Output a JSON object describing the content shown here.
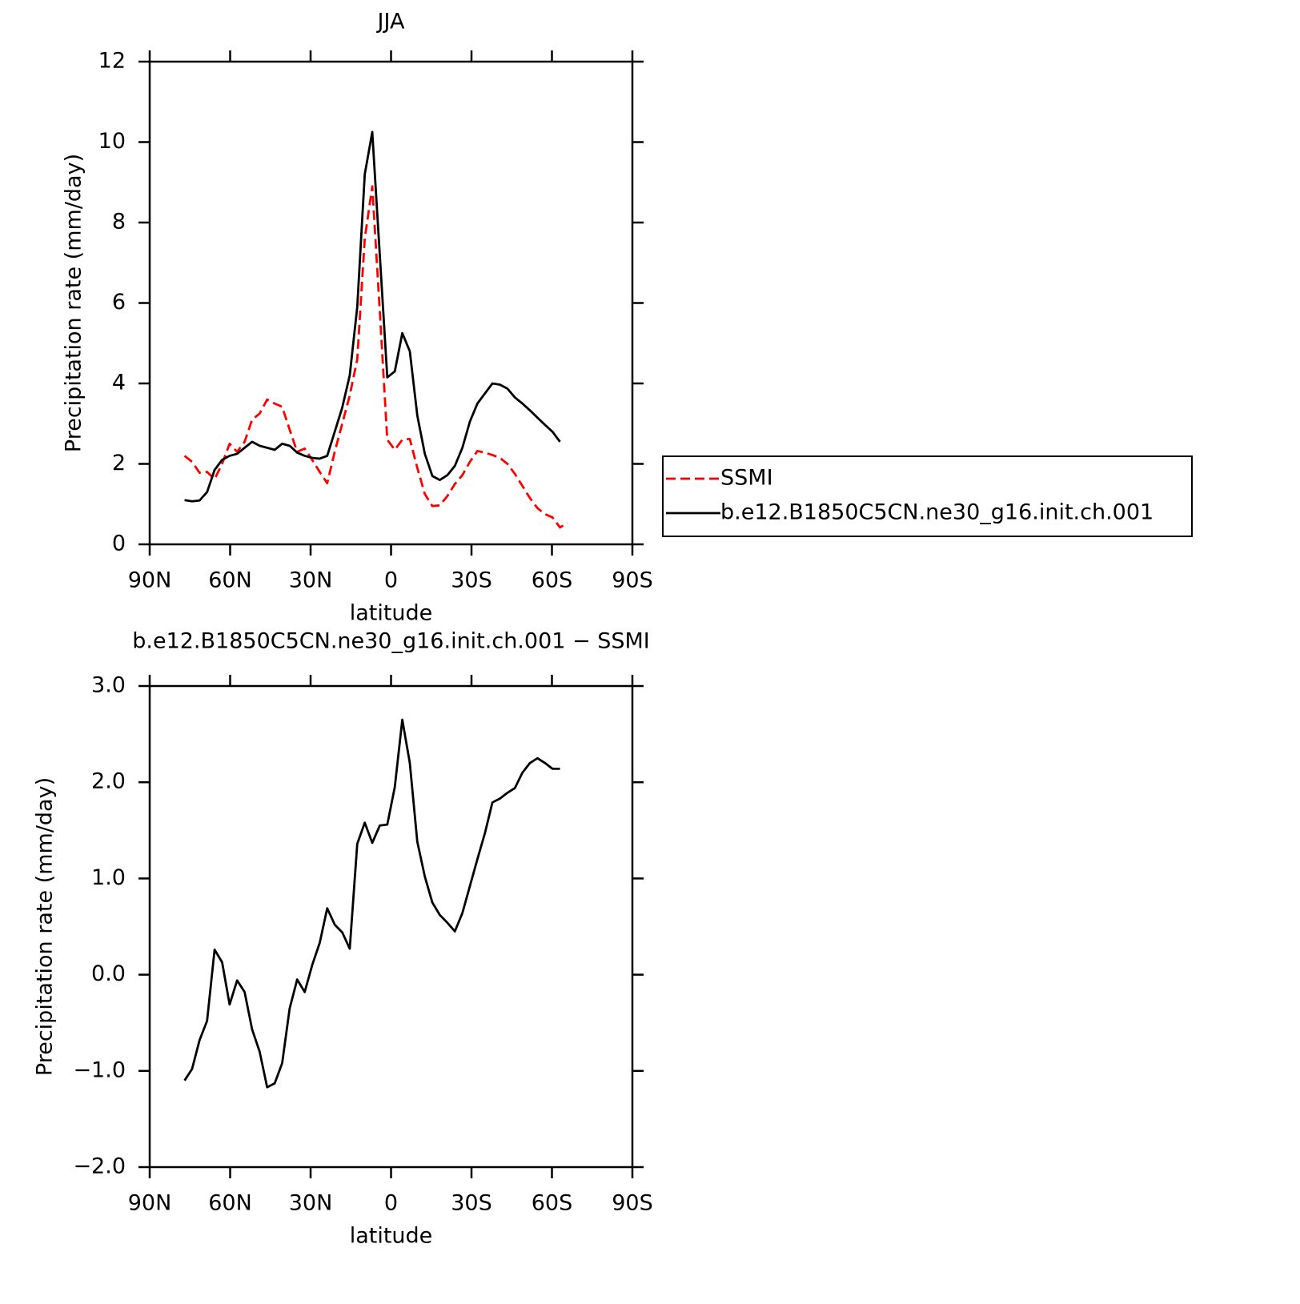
{
  "chart_data": [
    {
      "type": "line",
      "title": "JJA",
      "x_label": "latitude",
      "y_label": "Precipitation rate (mm/day)",
      "x": [
        77.0,
        74.2,
        71.4,
        68.6,
        65.8,
        63.0,
        60.2,
        57.4,
        54.6,
        51.8,
        49.0,
        46.2,
        43.4,
        40.6,
        37.8,
        35.0,
        32.2,
        29.4,
        26.6,
        23.8,
        21.0,
        18.2,
        15.4,
        12.6,
        9.8,
        7.0,
        4.2,
        1.4,
        -1.4,
        -4.2,
        -7.0,
        -9.8,
        -12.6,
        -15.4,
        -18.2,
        -21.0,
        -23.8,
        -26.6,
        -29.4,
        -32.2,
        -35.0,
        -37.8,
        -40.6,
        -43.4,
        -46.2,
        -49.0,
        -51.8,
        -54.6,
        -57.4,
        -60.2,
        -63.0,
        -65.8
      ],
      "xlim": [
        90,
        -90
      ],
      "xticks": [
        {
          "value": 90,
          "label": "90N"
        },
        {
          "value": 60,
          "label": "60N"
        },
        {
          "value": 30,
          "label": "30N"
        },
        0,
        {
          "value": -30,
          "label": "30S"
        },
        {
          "value": -60,
          "label": "60S"
        },
        {
          "value": -90,
          "label": "90S"
        }
      ],
      "ylim": [
        0,
        12
      ],
      "yticks": [
        0,
        2,
        4,
        6,
        8,
        10,
        12
      ],
      "legend": "right",
      "series": [
        {
          "name": "SSMI",
          "color": "#ff0000",
          "style": "dashed",
          "values": [
            2.2,
            2.05,
            1.78,
            1.8,
            1.62,
            2.0,
            2.5,
            2.3,
            2.55,
            3.1,
            3.25,
            3.6,
            3.5,
            3.42,
            2.85,
            2.3,
            2.38,
            2.1,
            1.8,
            1.52,
            2.3,
            3.0,
            3.7,
            4.6,
            7.6,
            8.9,
            5.8,
            2.6,
            2.35,
            2.6,
            2.62,
            1.9,
            1.25,
            0.95,
            0.97,
            1.2,
            1.5,
            1.72,
            2.05,
            2.32,
            2.28,
            2.22,
            2.15,
            2.0,
            1.75,
            1.45,
            1.15,
            0.9,
            0.75,
            0.67,
            0.42,
            0.53
          ]
        },
        {
          "name": "b.e12.B1850C5CN.ne30_g16.init.ch.001",
          "color": "#000000",
          "style": "solid",
          "values": [
            1.1,
            1.07,
            1.09,
            1.3,
            1.85,
            2.1,
            2.2,
            2.25,
            2.4,
            2.55,
            2.45,
            2.4,
            2.35,
            2.5,
            2.45,
            2.28,
            2.2,
            2.15,
            2.13,
            2.2,
            2.8,
            3.4,
            4.2,
            5.9,
            9.2,
            10.25,
            7.2,
            4.15,
            4.3,
            5.25,
            4.8,
            3.2,
            2.25,
            1.7,
            1.6,
            1.72,
            1.95,
            2.4,
            3.05,
            3.5,
            3.75,
            4.0,
            3.97,
            3.87,
            3.65,
            3.5,
            3.33,
            3.15,
            2.97,
            2.8,
            2.55,
            null
          ]
        }
      ]
    },
    {
      "type": "line",
      "title": "b.e12.B1850C5CN.ne30_g16.init.ch.001 − SSMI",
      "x_label": "latitude",
      "y_label": "Precipitation rate (mm/day)",
      "x": [
        77.0,
        74.2,
        71.4,
        68.6,
        65.8,
        63.0,
        60.2,
        57.4,
        54.6,
        51.8,
        49.0,
        46.2,
        43.4,
        40.6,
        37.8,
        35.0,
        32.2,
        29.4,
        26.6,
        23.8,
        21.0,
        18.2,
        15.4,
        12.6,
        9.8,
        7.0,
        4.2,
        1.4,
        -1.4,
        -4.2,
        -7.0,
        -9.8,
        -12.6,
        -15.4,
        -18.2,
        -21.0,
        -23.8,
        -26.6,
        -29.4,
        -32.2,
        -35.0,
        -37.8,
        -40.6,
        -43.4,
        -46.2,
        -49.0,
        -51.8,
        -54.6,
        -57.4,
        -60.2,
        -63.0,
        -65.8
      ],
      "xlim": [
        90,
        -90
      ],
      "xticks": [
        {
          "value": 90,
          "label": "90N"
        },
        {
          "value": 60,
          "label": "60N"
        },
        {
          "value": 30,
          "label": "30N"
        },
        0,
        {
          "value": -30,
          "label": "30S"
        },
        {
          "value": -60,
          "label": "60S"
        },
        {
          "value": -90,
          "label": "90S"
        }
      ],
      "ylim": [
        -2,
        3
      ],
      "yticks": [
        {
          "value": -2,
          "label": "−2.0"
        },
        {
          "value": -1,
          "label": "−1.0"
        },
        {
          "value": 0,
          "label": "0.0"
        },
        {
          "value": 1,
          "label": "1.0"
        },
        {
          "value": 2,
          "label": "2.0"
        },
        {
          "value": 3,
          "label": "3.0"
        }
      ],
      "series": [
        {
          "color": "#000000",
          "style": "solid",
          "values": [
            -1.1,
            -0.98,
            -0.68,
            -0.48,
            0.26,
            0.13,
            -0.31,
            -0.06,
            -0.18,
            -0.57,
            -0.8,
            -1.17,
            -1.13,
            -0.92,
            -0.35,
            -0.05,
            -0.18,
            0.1,
            0.33,
            0.69,
            0.52,
            0.44,
            0.27,
            1.36,
            1.58,
            1.37,
            1.55,
            1.56,
            1.95,
            2.65,
            2.2,
            1.38,
            1.02,
            0.75,
            0.62,
            0.54,
            0.45,
            0.64,
            0.92,
            1.2,
            1.47,
            1.79,
            1.83,
            1.89,
            1.94,
            2.1,
            2.2,
            2.25,
            2.2,
            2.14,
            2.14,
            null
          ]
        }
      ]
    }
  ]
}
